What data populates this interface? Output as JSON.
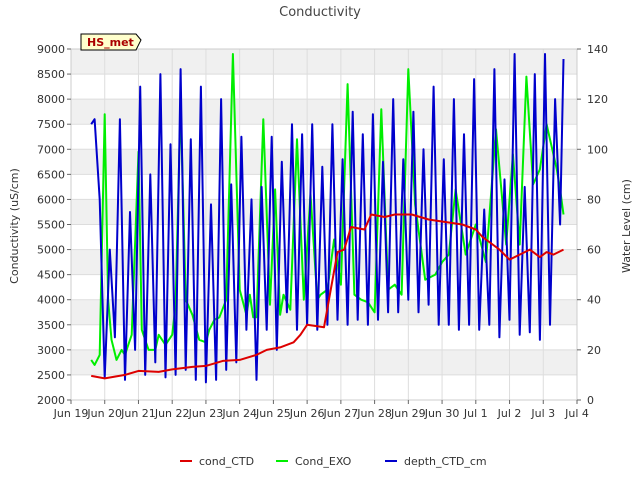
{
  "chart_data": {
    "type": "line",
    "title": "Conductivity",
    "badge": "HS_met",
    "ylabel_left": "Conductivity (uS/cm)",
    "ylabel_right": "Water Level (cm)",
    "ylim_left": [
      2000,
      9000
    ],
    "ylim_right": [
      0,
      140
    ],
    "yticks_left": [
      2000,
      2500,
      3000,
      3500,
      4000,
      4500,
      5000,
      5500,
      6000,
      6500,
      7000,
      7500,
      8000,
      8500,
      9000
    ],
    "yticks_right": [
      0,
      20,
      40,
      60,
      80,
      100,
      120,
      140
    ],
    "xlim_days": [
      0,
      15
    ],
    "xticks": [
      {
        "day": 0,
        "label": "Jun 19"
      },
      {
        "day": 1,
        "label": "Jun 20"
      },
      {
        "day": 2,
        "label": "Jun 21"
      },
      {
        "day": 3,
        "label": "Jun 22"
      },
      {
        "day": 4,
        "label": "Jun 23"
      },
      {
        "day": 5,
        "label": "Jun 24"
      },
      {
        "day": 6,
        "label": "Jun 25"
      },
      {
        "day": 7,
        "label": "Jun 26"
      },
      {
        "day": 8,
        "label": "Jun 27"
      },
      {
        "day": 9,
        "label": "Jun 28"
      },
      {
        "day": 10,
        "label": "Jun 29"
      },
      {
        "day": 11,
        "label": "Jun 30"
      },
      {
        "day": 12,
        "label": "Jul 1"
      },
      {
        "day": 13,
        "label": "Jul 2"
      },
      {
        "day": 14,
        "label": "Jul 3"
      },
      {
        "day": 15,
        "label": "Jul 4"
      }
    ],
    "grid": true,
    "legend_position": "bottom",
    "series": [
      {
        "name": "cond_CTD",
        "axis": "left",
        "color": "#dd0000",
        "x": [
          0.6,
          1.0,
          1.6,
          2.0,
          2.6,
          3.0,
          3.6,
          4.0,
          4.5,
          5.0,
          5.5,
          5.8,
          6.2,
          6.6,
          6.8,
          7.0,
          7.5,
          7.9,
          8.1,
          8.3,
          8.7,
          8.9,
          9.3,
          9.6,
          10.1,
          10.6,
          11.1,
          11.6,
          12.0,
          12.2,
          12.4,
          12.7,
          13.0,
          13.3,
          13.6,
          13.9,
          14.1,
          14.3,
          14.6
        ],
        "y": [
          2480,
          2430,
          2500,
          2580,
          2560,
          2610,
          2660,
          2680,
          2780,
          2800,
          2900,
          3000,
          3050,
          3150,
          3300,
          3500,
          3450,
          4950,
          5000,
          5450,
          5400,
          5700,
          5650,
          5700,
          5700,
          5600,
          5550,
          5500,
          5400,
          5250,
          5150,
          5000,
          4800,
          4900,
          5000,
          4850,
          4950,
          4900,
          5000
        ]
      },
      {
        "name": "Cond_EXO",
        "axis": "left",
        "color": "#00ee00",
        "x": [
          0.6,
          0.7,
          0.85,
          1.0,
          1.1,
          1.2,
          1.35,
          1.5,
          1.6,
          1.7,
          1.8,
          2.0,
          2.1,
          2.3,
          2.5,
          2.6,
          2.8,
          3.0,
          3.1,
          3.25,
          3.4,
          3.6,
          3.8,
          4.0,
          4.1,
          4.25,
          4.4,
          4.6,
          4.8,
          5.0,
          5.2,
          5.3,
          5.4,
          5.5,
          5.7,
          5.9,
          6.05,
          6.2,
          6.3,
          6.5,
          6.7,
          6.9,
          7.1,
          7.3,
          7.4,
          7.6,
          7.8,
          8.0,
          8.2,
          8.4,
          8.6,
          8.8,
          9.0,
          9.2,
          9.4,
          9.6,
          9.8,
          10.0,
          10.2,
          10.5,
          10.8,
          11.0,
          11.2,
          11.4,
          11.7,
          12.0,
          12.3,
          12.6,
          12.9,
          13.1,
          13.3,
          13.5,
          13.7,
          13.9,
          14.1,
          14.2,
          14.4,
          14.5,
          14.6
        ],
        "y": [
          2800,
          2700,
          2900,
          7700,
          4000,
          3200,
          2800,
          3000,
          2900,
          3100,
          3300,
          6950,
          3400,
          3000,
          3000,
          3300,
          3100,
          3300,
          3900,
          7950,
          4000,
          3700,
          3200,
          3150,
          3400,
          3600,
          3650,
          4000,
          8900,
          4200,
          3700,
          4100,
          3650,
          3650,
          7600,
          3900,
          6200,
          3700,
          4100,
          3800,
          7200,
          4000,
          6100,
          4000,
          4100,
          4200,
          5200,
          4300,
          8300,
          4100,
          4000,
          3950,
          3750,
          7800,
          4200,
          4300,
          4100,
          8600,
          5900,
          4400,
          4500,
          4750,
          4900,
          6200,
          4900,
          5500,
          4750,
          7400,
          5100,
          6900,
          5100,
          8450,
          6300,
          6600,
          7500,
          7200,
          6600,
          6200,
          5700
        ]
      },
      {
        "name": "depth_CTD_cm",
        "axis": "right",
        "color": "#0000cc",
        "x": [
          0.6,
          0.7,
          0.85,
          1.0,
          1.15,
          1.3,
          1.45,
          1.6,
          1.75,
          1.9,
          2.05,
          2.2,
          2.35,
          2.5,
          2.65,
          2.8,
          2.95,
          3.1,
          3.25,
          3.4,
          3.55,
          3.7,
          3.85,
          4.0,
          4.15,
          4.3,
          4.45,
          4.6,
          4.75,
          4.9,
          5.05,
          5.2,
          5.35,
          5.5,
          5.65,
          5.8,
          5.95,
          6.1,
          6.25,
          6.4,
          6.55,
          6.7,
          6.85,
          7.0,
          7.15,
          7.3,
          7.45,
          7.6,
          7.75,
          7.9,
          8.05,
          8.2,
          8.35,
          8.5,
          8.65,
          8.8,
          8.95,
          9.1,
          9.25,
          9.4,
          9.55,
          9.7,
          9.85,
          10.0,
          10.15,
          10.3,
          10.45,
          10.6,
          10.75,
          10.9,
          11.05,
          11.2,
          11.35,
          11.5,
          11.65,
          11.8,
          11.95,
          12.1,
          12.25,
          12.4,
          12.55,
          12.7,
          12.85,
          13.0,
          13.15,
          13.3,
          13.45,
          13.6,
          13.75,
          13.9,
          14.05,
          14.2,
          14.35,
          14.5,
          14.6
        ],
        "y": [
          110,
          112,
          80,
          9,
          60,
          25,
          112,
          8,
          75,
          20,
          125,
          10,
          90,
          15,
          130,
          9,
          102,
          10,
          132,
          12,
          104,
          8,
          125,
          7,
          78,
          8,
          120,
          12,
          86,
          15,
          105,
          28,
          80,
          8,
          85,
          28,
          105,
          20,
          95,
          35,
          110,
          28,
          106,
          30,
          110,
          28,
          93,
          30,
          110,
          32,
          96,
          30,
          115,
          32,
          106,
          30,
          114,
          32,
          95,
          35,
          120,
          35,
          96,
          40,
          115,
          35,
          100,
          38,
          125,
          30,
          96,
          30,
          120,
          28,
          106,
          30,
          128,
          28,
          76,
          30,
          132,
          25,
          88,
          32,
          138,
          26,
          85,
          27,
          130,
          24,
          138,
          30,
          120,
          70,
          136
        ]
      }
    ]
  }
}
